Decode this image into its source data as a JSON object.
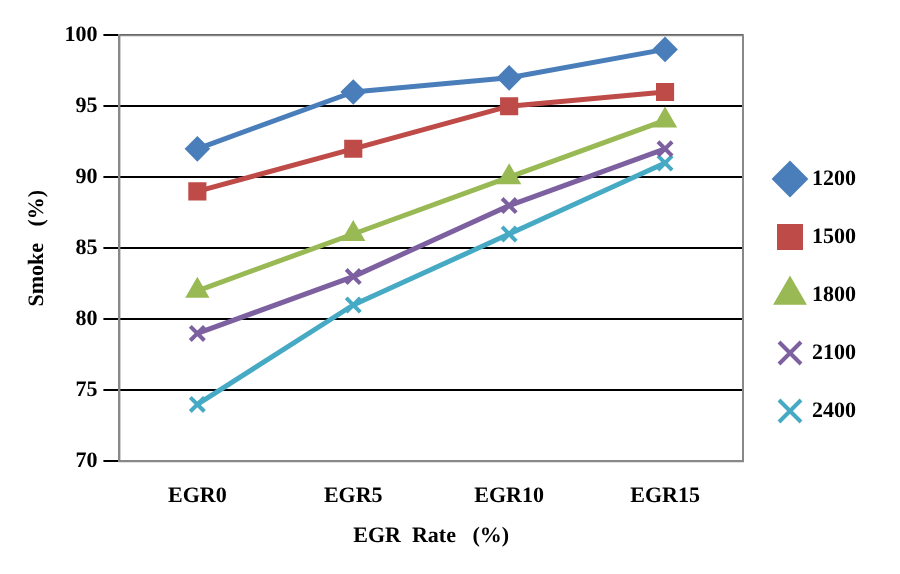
{
  "chart_data": {
    "type": "line",
    "xlabel": "EGR  Rate   (%)",
    "ylabel": "Smoke   (%)",
    "categories": [
      "EGR0",
      "EGR5",
      "EGR10",
      "EGR15"
    ],
    "series": [
      {
        "name": "1200",
        "color": "#4a7ebb",
        "marker": "diamond",
        "values": [
          92,
          96,
          97,
          99
        ]
      },
      {
        "name": "1500",
        "color": "#be4b48",
        "marker": "square",
        "values": [
          89,
          92,
          95,
          96
        ]
      },
      {
        "name": "1800",
        "color": "#98b954",
        "marker": "triangle",
        "values": [
          82,
          86,
          90,
          94
        ]
      },
      {
        "name": "2100",
        "color": "#7d60a0",
        "marker": "cross",
        "values": [
          79,
          83,
          88,
          92
        ]
      },
      {
        "name": "2400",
        "color": "#46aac5",
        "marker": "cross",
        "values": [
          74,
          81,
          86,
          91
        ]
      }
    ],
    "ylim": [
      70,
      100
    ],
    "yticks": [
      70,
      75,
      80,
      85,
      90,
      95,
      100
    ],
    "grid": "y",
    "legend": "right"
  }
}
